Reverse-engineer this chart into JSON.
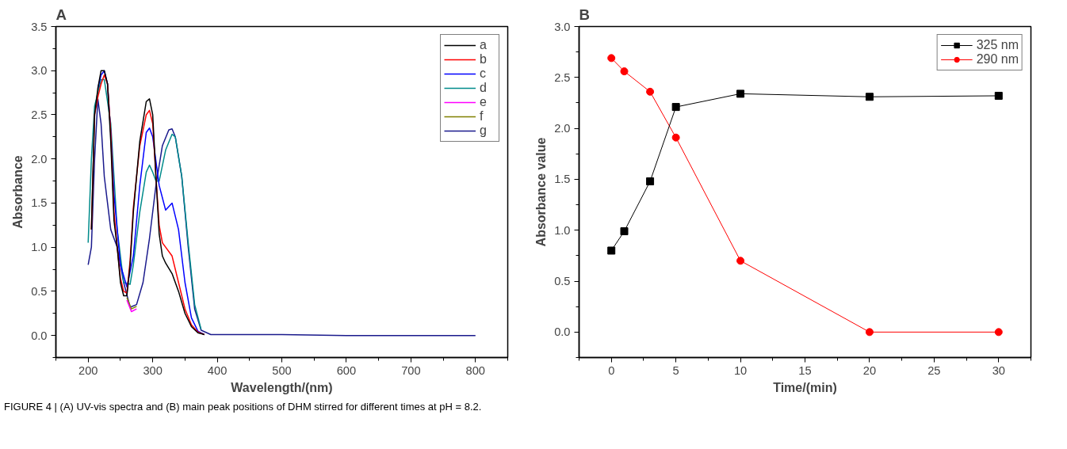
{
  "chart_data": [
    {
      "type": "line",
      "title": "A",
      "xlabel": "Wavelength/(nm)",
      "ylabel": "Absorbance",
      "xlim": [
        150,
        850
      ],
      "xticks": [
        200,
        300,
        400,
        500,
        600,
        700,
        800
      ],
      "ylim": [
        -0.25,
        3.5
      ],
      "yticks": [
        {
          "value": 0,
          "label": "0.0"
        },
        0.5,
        {
          "value": 1,
          "label": "1.0"
        },
        1.5,
        {
          "value": 2,
          "label": "2.0"
        },
        2.5,
        {
          "value": 3,
          "label": "3.0"
        },
        3.5
      ],
      "grid": false,
      "legend": "top right",
      "marker": "none",
      "line_style": "solid",
      "series": [
        {
          "name": "a",
          "color": "#000000",
          "x": [
            205,
            210,
            215,
            220,
            225,
            230,
            235,
            240,
            245,
            250,
            255,
            260,
            265,
            270,
            280,
            290,
            295,
            300,
            305,
            310,
            315,
            320,
            330,
            340,
            350,
            360,
            370,
            380
          ],
          "values": [
            1.2,
            2.5,
            2.8,
            3.0,
            3.0,
            2.85,
            2.2,
            1.3,
            1.0,
            0.6,
            0.45,
            0.45,
            0.8,
            1.4,
            2.2,
            2.65,
            2.68,
            2.5,
            1.8,
            1.15,
            0.9,
            0.82,
            0.7,
            0.5,
            0.25,
            0.1,
            0.03,
            0.01
          ]
        },
        {
          "name": "b",
          "color": "#ff0000",
          "x": [
            205,
            210,
            215,
            220,
            225,
            230,
            235,
            240,
            245,
            250,
            255,
            260,
            265,
            270,
            280,
            290,
            295,
            300,
            305,
            310,
            315,
            320,
            330,
            340,
            350,
            360,
            370,
            380
          ],
          "values": [
            1.2,
            2.5,
            2.7,
            2.85,
            2.95,
            2.85,
            2.3,
            1.4,
            1.0,
            0.65,
            0.5,
            0.48,
            0.85,
            1.45,
            2.15,
            2.5,
            2.55,
            2.4,
            1.8,
            1.25,
            1.05,
            1.0,
            0.9,
            0.6,
            0.3,
            0.12,
            0.04,
            0.01
          ]
        },
        {
          "name": "c",
          "color": "#0000ff",
          "x": [
            215,
            220,
            225,
            230,
            235,
            240,
            250,
            260,
            270,
            280,
            290,
            295,
            300,
            310,
            320,
            330,
            340,
            350,
            360,
            370,
            380
          ],
          "values": [
            2.8,
            2.95,
            3.0,
            2.85,
            2.3,
            1.6,
            0.8,
            0.55,
            0.9,
            1.7,
            2.3,
            2.35,
            2.25,
            1.7,
            1.42,
            1.5,
            1.2,
            0.6,
            0.2,
            0.05,
            0.01
          ]
        },
        {
          "name": "d",
          "color": "#008b8b",
          "x": [
            200,
            205,
            210,
            220,
            225,
            235,
            240,
            245,
            255,
            265,
            270,
            280,
            290,
            295,
            300,
            305,
            310,
            320,
            330,
            335,
            345,
            355,
            365,
            375
          ],
          "values": [
            1.05,
            2.0,
            2.6,
            2.9,
            2.9,
            2.4,
            1.8,
            1.2,
            0.6,
            0.58,
            0.8,
            1.4,
            1.85,
            1.93,
            1.85,
            1.75,
            1.75,
            2.1,
            2.28,
            2.25,
            1.8,
            1.05,
            0.35,
            0.07
          ]
        },
        {
          "name": "e",
          "color": "#ff00ff",
          "x": [
            260,
            267,
            275
          ],
          "values": [
            0.4,
            0.27,
            0.3
          ]
        },
        {
          "name": "f",
          "color": "#808000",
          "x": [
            260,
            267,
            275
          ],
          "values": [
            0.43,
            0.3,
            0.33
          ]
        },
        {
          "name": "g",
          "color": "#1a1a8c",
          "x": [
            200,
            205,
            210,
            215,
            220,
            225,
            235,
            245,
            255,
            265,
            275,
            285,
            295,
            305,
            315,
            325,
            330,
            335,
            345,
            355,
            365,
            375,
            390,
            500,
            600,
            800
          ],
          "values": [
            0.8,
            1.0,
            2.0,
            2.68,
            2.4,
            1.8,
            1.2,
            1.0,
            0.6,
            0.32,
            0.35,
            0.6,
            1.1,
            1.7,
            2.15,
            2.33,
            2.34,
            2.25,
            1.8,
            1.0,
            0.3,
            0.06,
            0.01,
            0.01,
            0.0,
            0.0
          ]
        }
      ]
    },
    {
      "type": "line",
      "title": "B",
      "xlabel": "Time/(min)",
      "ylabel": "Absorbance value",
      "xlim": [
        -2.5,
        32.5
      ],
      "xticks": [
        0,
        5,
        10,
        15,
        20,
        25,
        30
      ],
      "ylim": [
        -0.25,
        3.0
      ],
      "yticks": [
        {
          "value": 0,
          "label": "0.0"
        },
        0.5,
        {
          "value": 1,
          "label": "1.0"
        },
        1.5,
        {
          "value": 2,
          "label": "2.0"
        },
        2.5,
        {
          "value": 3,
          "label": "3.0"
        }
      ],
      "grid": false,
      "legend": "top right",
      "line_style": "solid",
      "x": [
        0,
        1,
        3,
        5,
        10,
        20,
        30
      ],
      "series": [
        {
          "name": "325 nm",
          "color": "#000000",
          "marker": "square",
          "values": [
            0.8,
            0.99,
            1.48,
            2.21,
            2.34,
            2.31,
            2.32
          ]
        },
        {
          "name": "290 nm",
          "color": "#ff0000",
          "marker": "circle",
          "values": [
            2.69,
            2.56,
            2.36,
            1.91,
            0.7,
            0.0,
            0.0
          ]
        }
      ],
      "annotations": [
        "FIGURE 4 | (A) UV-vis spectra and (B) main peak positions of DHM stirred for different times at pH = 8.2."
      ]
    }
  ]
}
